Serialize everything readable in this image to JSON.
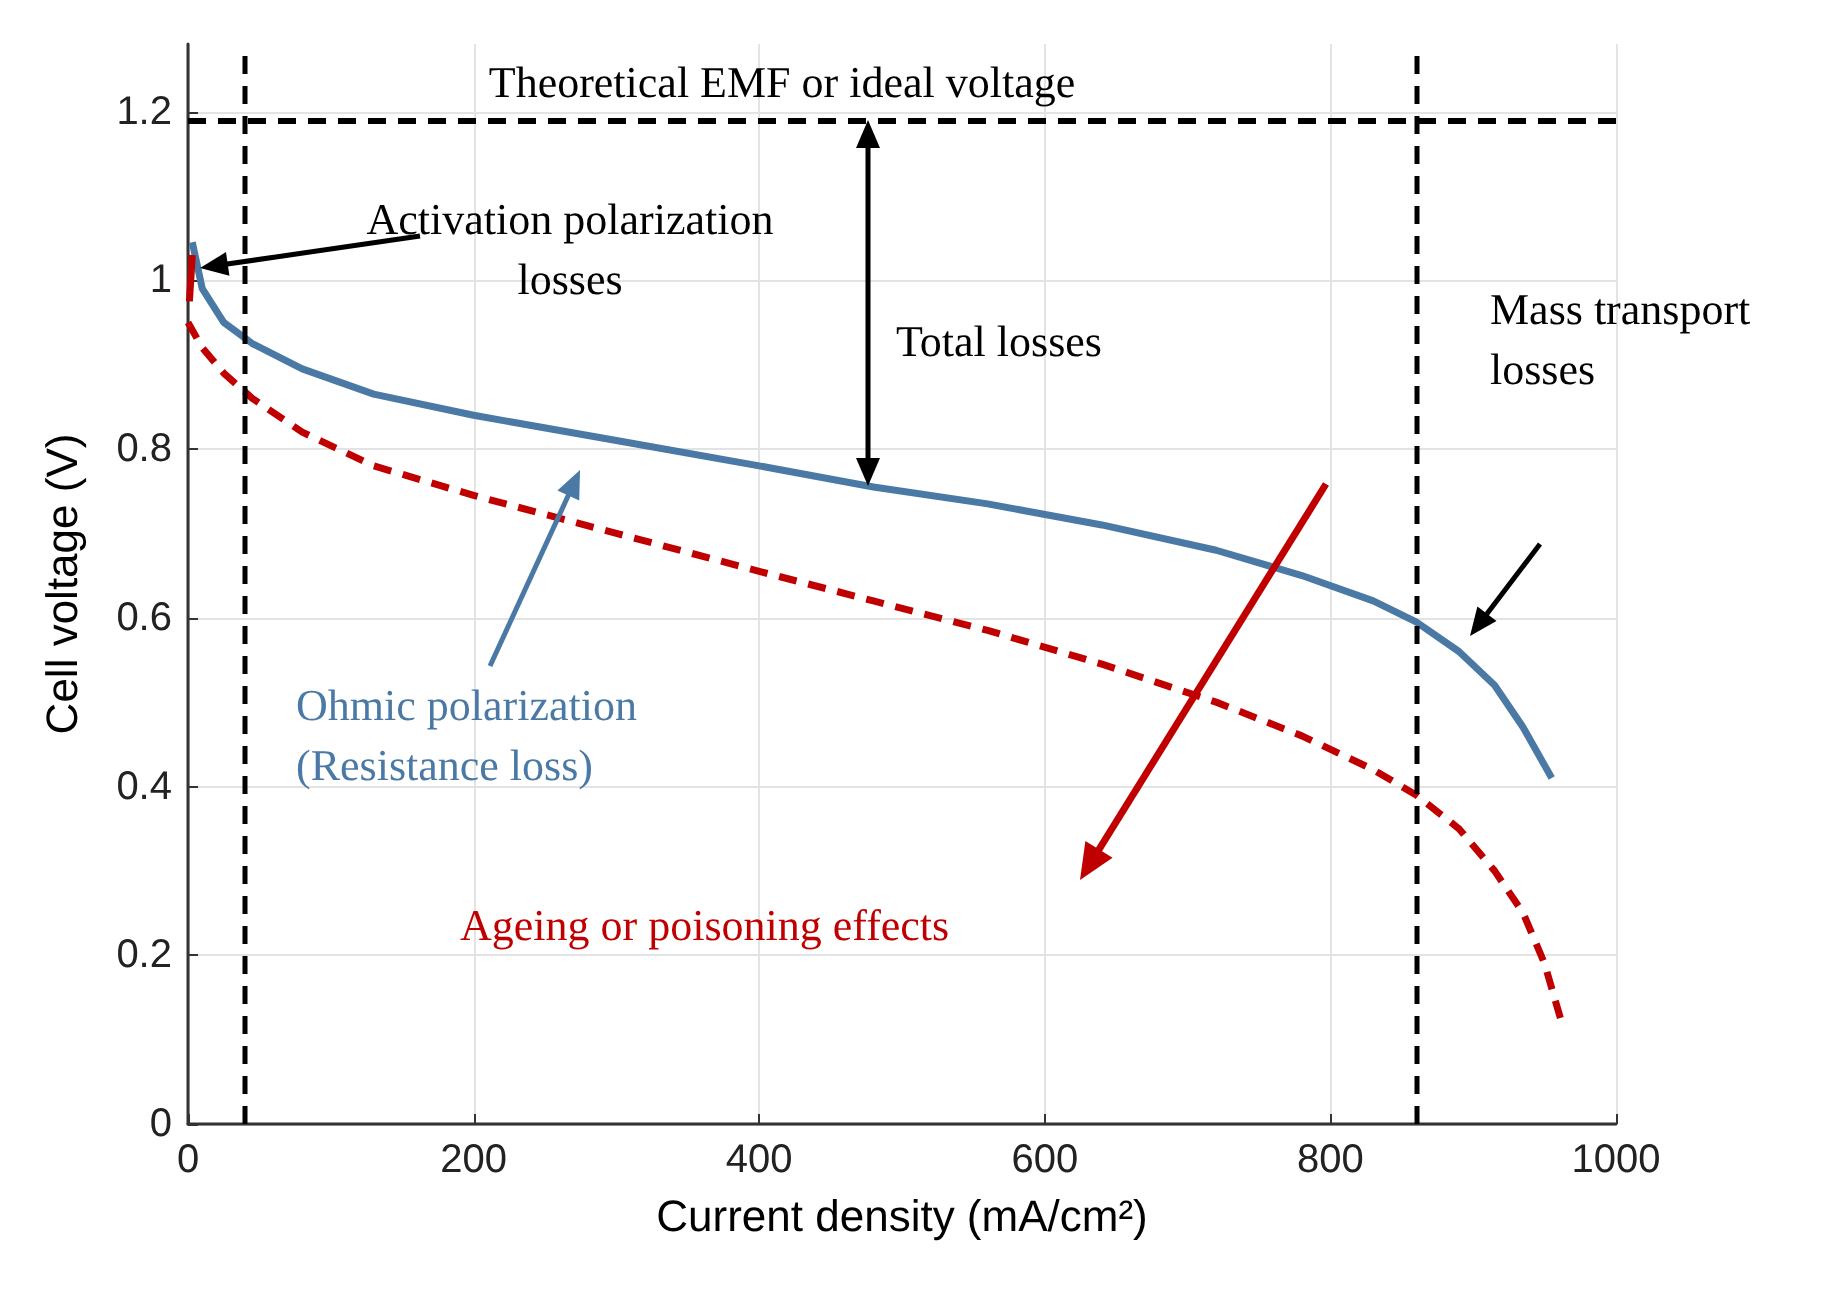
{
  "chart_data": {
    "type": "line",
    "xlabel": "Current density (mA/cm²)",
    "ylabel": "Cell voltage (V)",
    "xlim": [
      0,
      1000
    ],
    "xticks": [
      0,
      200,
      400,
      600,
      800,
      1000
    ],
    "ylim": [
      0,
      1.28
    ],
    "yticks": [
      0,
      0.2,
      0.4,
      0.6,
      0.8,
      1,
      1.2
    ],
    "grid": true,
    "marker": "none",
    "series": [
      {
        "color": "#4a79a5",
        "line_style": "solid",
        "x": [
          3,
          10,
          25,
          45,
          80,
          130,
          200,
          300,
          400,
          480,
          560,
          640,
          720,
          780,
          830,
          860,
          890,
          915,
          935,
          955
        ],
        "values": [
          1.045,
          0.99,
          0.95,
          0.925,
          0.895,
          0.865,
          0.84,
          0.81,
          0.78,
          0.755,
          0.735,
          0.71,
          0.68,
          0.65,
          0.62,
          0.595,
          0.56,
          0.52,
          0.47,
          0.41
        ]
      },
      {
        "color": "#c00000",
        "line_style": "dashed",
        "x": [
          0,
          10,
          25,
          45,
          80,
          130,
          200,
          300,
          400,
          480,
          560,
          640,
          720,
          780,
          830,
          860,
          890,
          915,
          935,
          950,
          962
        ],
        "values": [
          0.95,
          0.92,
          0.89,
          0.86,
          0.82,
          0.78,
          0.745,
          0.7,
          0.655,
          0.62,
          0.585,
          0.545,
          0.5,
          0.46,
          0.42,
          0.39,
          0.35,
          0.3,
          0.25,
          0.19,
          0.12
        ]
      },
      {
        "color": "#c00000",
        "line_style": "solid",
        "x": [
          1,
          3
        ],
        "values": [
          0.975,
          1.03
        ]
      }
    ],
    "ref_lines": [
      {
        "axis": "y",
        "value": 1.19,
        "label": "Theoretical EMF or ideal voltage",
        "color": "#000000",
        "line_style": "dashed"
      },
      {
        "axis": "x",
        "value": 40,
        "label": null,
        "color": "#000000",
        "line_style": "dashed"
      },
      {
        "axis": "x",
        "value": 860,
        "label": null,
        "color": "#000000",
        "line_style": "dashed"
      }
    ],
    "annotations": [
      "Activation polarization losses",
      "Total losses",
      "Mass transport losses",
      "Ohmic polarization (Resistance loss)",
      "Ageing or poisoning effects"
    ]
  }
}
